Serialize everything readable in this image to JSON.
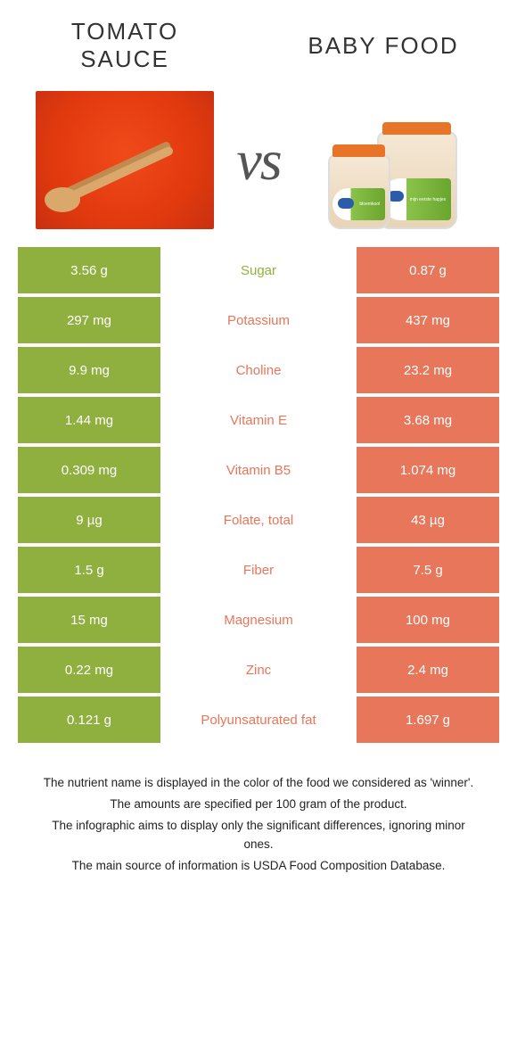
{
  "colors": {
    "green": "#8fb03e",
    "orange": "#e7765a",
    "label_green": "#8fb03e",
    "label_orange": "#e7765a",
    "bg": "#ffffff"
  },
  "header": {
    "left_title": "TOMATO SAUCE",
    "right_title": "BABY FOOD",
    "vs": "vs"
  },
  "jars": {
    "small_label": "bloemkool",
    "big_label": "mijn eerste hapjes"
  },
  "rows": [
    {
      "left": "3.56 g",
      "label": "Sugar",
      "right": "0.87 g",
      "left_is_winner": true
    },
    {
      "left": "297 mg",
      "label": "Potassium",
      "right": "437 mg",
      "left_is_winner": false
    },
    {
      "left": "9.9 mg",
      "label": "Choline",
      "right": "23.2 mg",
      "left_is_winner": false
    },
    {
      "left": "1.44 mg",
      "label": "Vitamin E",
      "right": "3.68 mg",
      "left_is_winner": false
    },
    {
      "left": "0.309 mg",
      "label": "Vitamin B5",
      "right": "1.074 mg",
      "left_is_winner": false
    },
    {
      "left": "9 µg",
      "label": "Folate, total",
      "right": "43 µg",
      "left_is_winner": false
    },
    {
      "left": "1.5 g",
      "label": "Fiber",
      "right": "7.5 g",
      "left_is_winner": false
    },
    {
      "left": "15 mg",
      "label": "Magnesium",
      "right": "100 mg",
      "left_is_winner": false
    },
    {
      "left": "0.22 mg",
      "label": "Zinc",
      "right": "2.4 mg",
      "left_is_winner": false
    },
    {
      "left": "0.121 g",
      "label": "Polyunsaturated fat",
      "right": "1.697 g",
      "left_is_winner": false
    }
  ],
  "footer": [
    "The nutrient name is displayed in the color of the food we considered as 'winner'.",
    "The amounts are specified per 100 gram of the product.",
    "The infographic aims to display only the significant differences, ignoring minor ones.",
    "The main source of information is USDA Food Composition Database."
  ]
}
